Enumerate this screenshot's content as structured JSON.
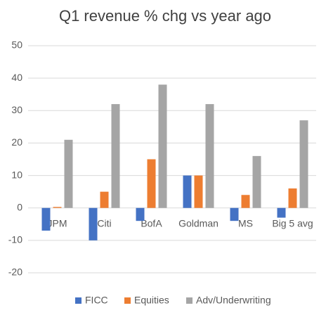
{
  "chart_data": {
    "type": "bar",
    "title": "Q1 revenue % chg vs year ago",
    "categories": [
      "JPM",
      "Citi",
      "BofA",
      "Goldman",
      "MS",
      "Big 5 avg"
    ],
    "series": [
      {
        "name": "FICC",
        "color": "#4472c4",
        "values": [
          -7,
          -10,
          -4,
          10,
          -4,
          -3
        ]
      },
      {
        "name": "Equities",
        "color": "#ed7d31",
        "values": [
          0.3,
          5,
          15,
          10,
          4,
          6
        ]
      },
      {
        "name": "Adv/Underwriting",
        "color": "#a5a5a5",
        "values": [
          21,
          32,
          38,
          32,
          16,
          27
        ]
      }
    ],
    "ylim": [
      -20,
      50
    ],
    "yticks": [
      -20,
      -10,
      0,
      10,
      20,
      30,
      40,
      50
    ],
    "grid": true,
    "legend": "bottom"
  }
}
